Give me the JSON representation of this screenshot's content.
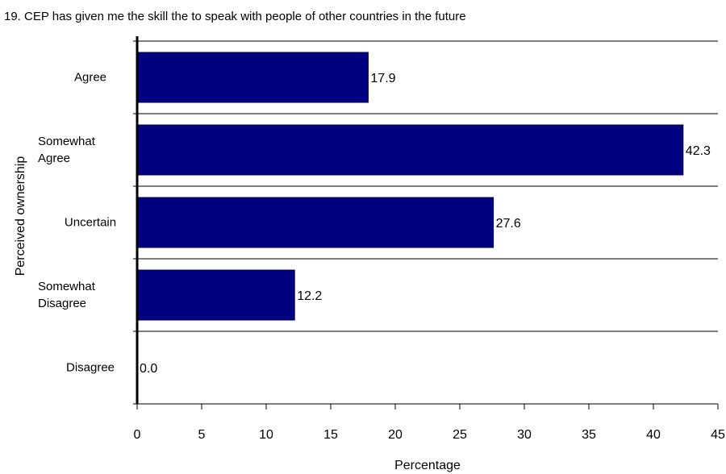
{
  "chart_data": {
    "type": "bar",
    "orientation": "horizontal",
    "title": "19.  CEP has given me the skill the to speak with people of other countries in the future",
    "xlabel": "Percentage",
    "ylabel": "Perceived ownership",
    "categories": [
      [
        "Agree"
      ],
      [
        "Somewhat",
        "Agree"
      ],
      [
        "Uncertain"
      ],
      [
        "Somewhat",
        "Disagree"
      ],
      [
        "Disagree"
      ]
    ],
    "values": [
      17.9,
      42.3,
      27.6,
      12.2,
      0.0
    ],
    "data_labels": [
      "17.9",
      "42.3",
      "27.6",
      "12.2",
      "0.0"
    ],
    "xlim": [
      0,
      45
    ],
    "xticks": [
      0,
      5,
      10,
      15,
      20,
      25,
      30,
      35,
      40,
      45
    ],
    "grid": "horizontal category separators",
    "legend": "none",
    "bar_color": "#000080",
    "bar_border_color": "#000040"
  }
}
